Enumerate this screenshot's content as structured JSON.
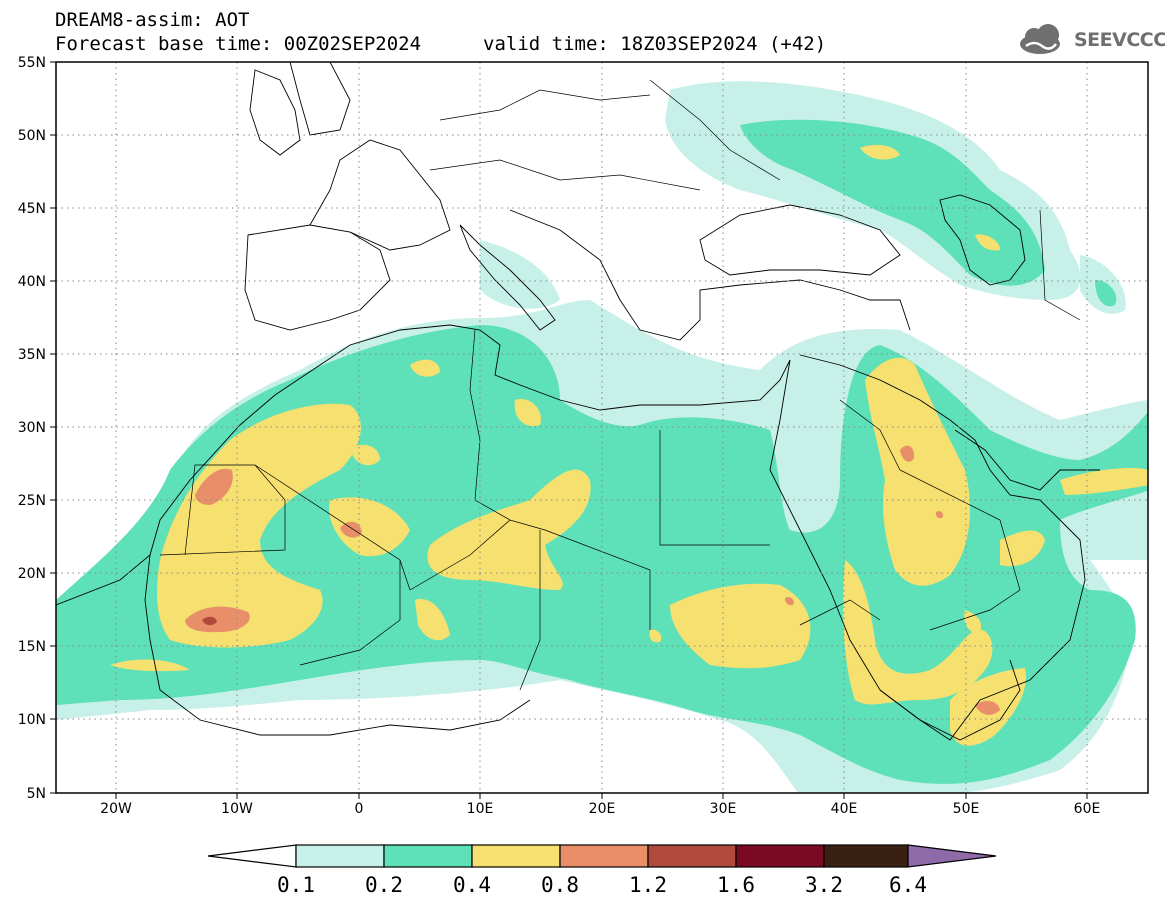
{
  "header": {
    "title": "DREAM8-assim: AOT",
    "base_time": "Forecast base time: 00Z02SEP2024",
    "valid_time": "valid time: 18Z03SEP2024 (+42)"
  },
  "logo": {
    "text": "SEEVCCC",
    "icon": "cloud-icon"
  },
  "map": {
    "lon_range": [
      -25,
      65
    ],
    "lat_range": [
      5,
      55
    ],
    "lat_labels": [
      "55N",
      "50N",
      "45N",
      "40N",
      "35N",
      "30N",
      "25N",
      "20N",
      "15N",
      "10N",
      "5N"
    ],
    "lon_labels": [
      "20W",
      "10W",
      "0",
      "10E",
      "20E",
      "30E",
      "40E",
      "50E",
      "60E"
    ],
    "grid": "dotted"
  },
  "colorbar": {
    "labels": [
      "0.1",
      "0.2",
      "0.4",
      "0.8",
      "1.2",
      "1.6",
      "3.2",
      "6.4"
    ],
    "colors": [
      "#ffffff",
      "#c6f0e8",
      "#5ee0b8",
      "#f5e070",
      "#e88f6a",
      "#b04a3c",
      "#7a0a24",
      "#3a2010",
      "#8e6aa8"
    ]
  },
  "colors": {
    "aot_01": "#c6f0e8",
    "aot_02": "#5ee0b8",
    "aot_04": "#f5e070",
    "aot_08": "#e88f6a",
    "aot_12": "#b04a3c"
  }
}
